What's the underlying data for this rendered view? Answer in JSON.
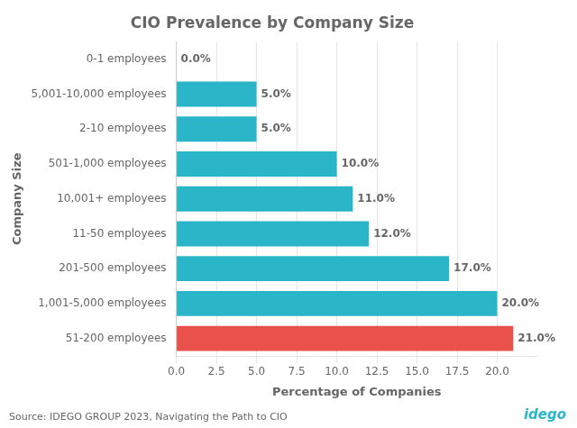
{
  "chart_data": {
    "type": "bar",
    "orientation": "horizontal",
    "title": "CIO Prevalence by Company Size",
    "xlabel": "Percentage of Companies",
    "ylabel": "Company Size",
    "categories": [
      "51-200 employees",
      "1,001-5,000 employees",
      "201-500 employees",
      "11-50 employees",
      "10,001+ employees",
      "501-1,000 employees",
      "2-10 employees",
      "5,001-10,000 employees",
      "0-1 employees"
    ],
    "values": [
      21.0,
      20.0,
      17.0,
      12.0,
      11.0,
      10.0,
      5.0,
      5.0,
      0.0
    ],
    "value_labels": [
      "21.0%",
      "20.0%",
      "17.0%",
      "12.0%",
      "11.0%",
      "10.0%",
      "5.0%",
      "5.0%",
      "0.0%"
    ],
    "data_labels": true,
    "colors": [
      "#E8524A",
      "#2BB5C8",
      "#2BB5C8",
      "#2BB5C8",
      "#2BB5C8",
      "#2BB5C8",
      "#2BB5C8",
      "#2BB5C8",
      "#2BB5C8"
    ],
    "xlim": [
      0,
      22.5
    ],
    "xticks": [
      {
        "value": 0,
        "label": "0.0"
      },
      2.5,
      {
        "value": 5,
        "label": "5.0"
      },
      7.5,
      {
        "value": 10,
        "label": "10.0"
      },
      12.5,
      {
        "value": 15,
        "label": "15.0"
      },
      17.5,
      {
        "value": 20,
        "label": "20.0"
      }
    ],
    "grid": true,
    "annotations": [
      {
        "text": "Source: IDEGO GROUP 2023, Navigating the Path to CIO"
      },
      {
        "text": "idego",
        "color": "#2BB5C8"
      }
    ]
  }
}
